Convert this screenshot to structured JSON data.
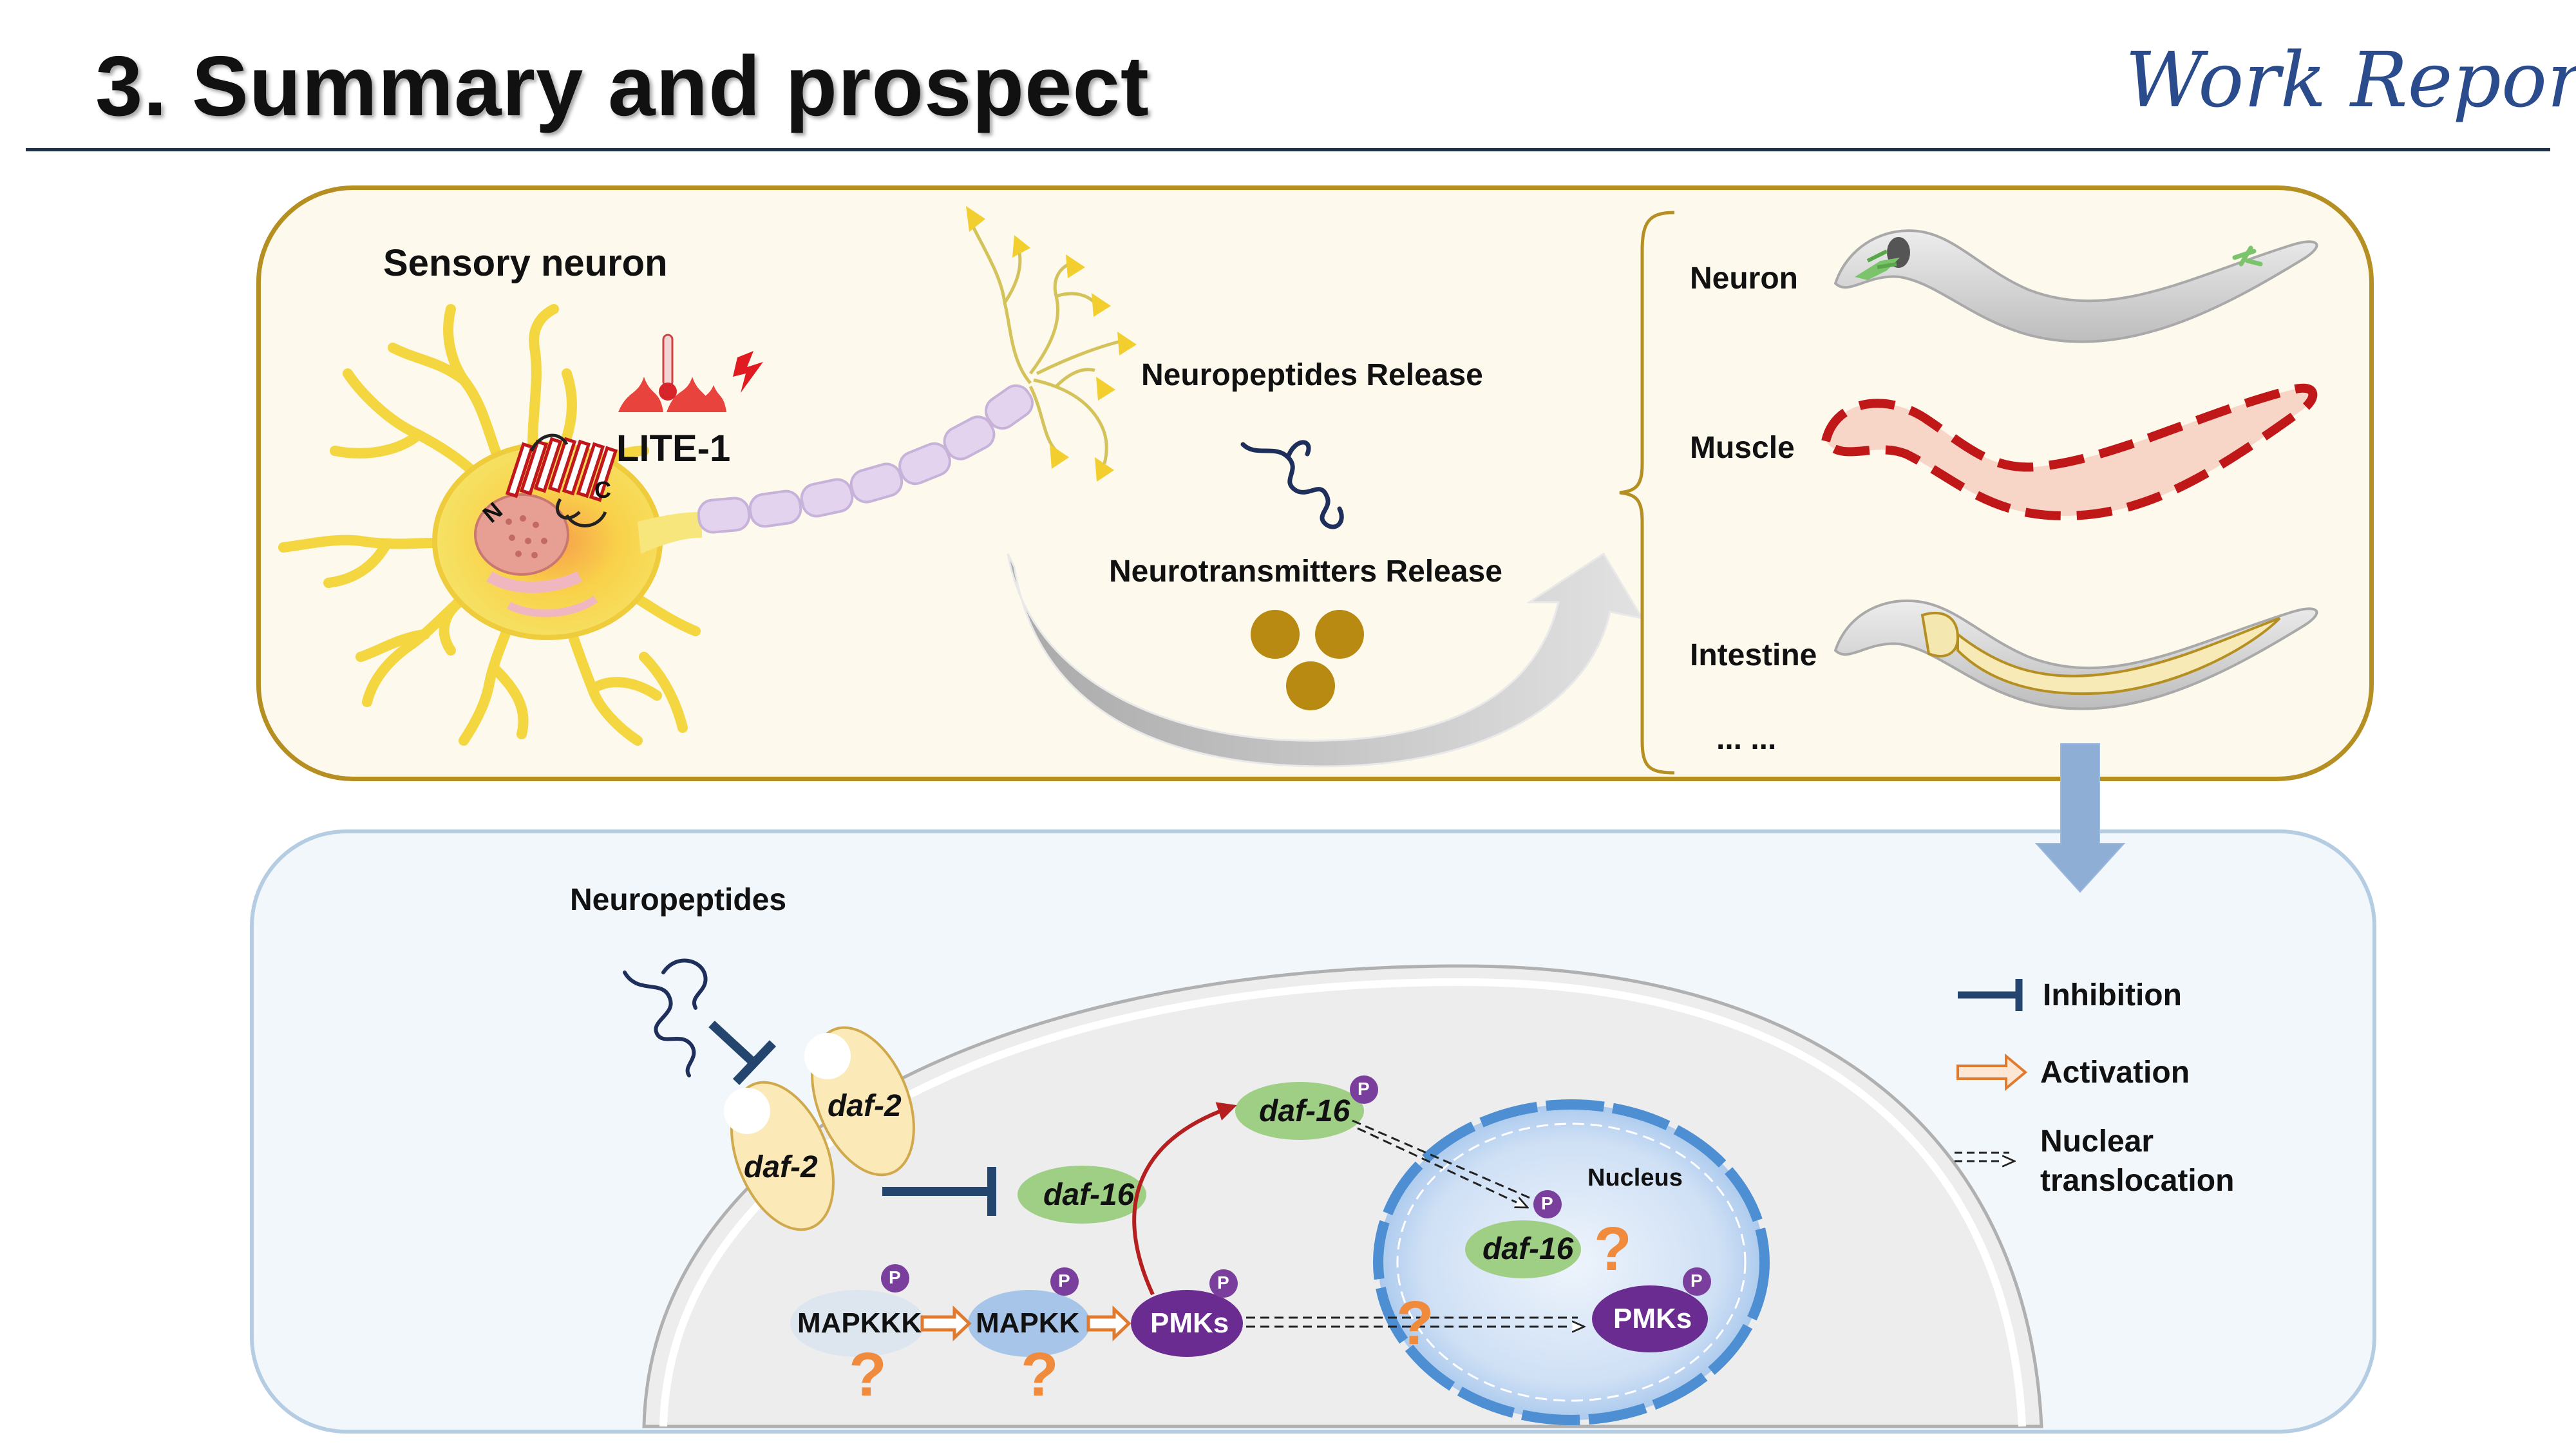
{
  "header": {
    "title": "3. Summary and prospect",
    "brand": "Work Report"
  },
  "top": {
    "heading": "Sensory neuron",
    "receptor": "LITE-1",
    "receptor_n": "N",
    "receptor_c": "C",
    "neuropeptides_release": "Neuropeptides Release",
    "neurotransmitters_release": "Neurotransmitters Release",
    "tissues": [
      "Neuron",
      "Muscle",
      "Intestine"
    ],
    "ellipsis": "... ..."
  },
  "bottom": {
    "neuropeptides": "Neuropeptides",
    "daf2_left": "daf-2",
    "daf2_right": "daf-2",
    "daf16_cyto": "daf-16",
    "daf16_upper": "daf-16",
    "daf16_nucleus": "daf-16",
    "nucleus": "Nucleus",
    "mapkkk": "MAPKKK",
    "mapkk": "MAPKK",
    "pmks_cyto": "PMKs",
    "pmks_nucleus": "PMKs",
    "phospho": "P",
    "unknown": "?"
  },
  "legend": {
    "inhibition": "Inhibition",
    "activation": "Activation",
    "translocation_line1": "Nuclear",
    "translocation_line2": "translocation"
  },
  "colors": {
    "title_rule": "#1e2f46",
    "top_panel_border": "#b58f22",
    "bottom_panel_border": "#b5cde3",
    "inhibition": "#24466e",
    "activation": "#e07a2f",
    "phospho": "#7a3e9c",
    "pmks": "#6a2c91",
    "daf16": "#9fce85",
    "muscle": "#c01818",
    "nucleus": "#5b9bd5"
  }
}
